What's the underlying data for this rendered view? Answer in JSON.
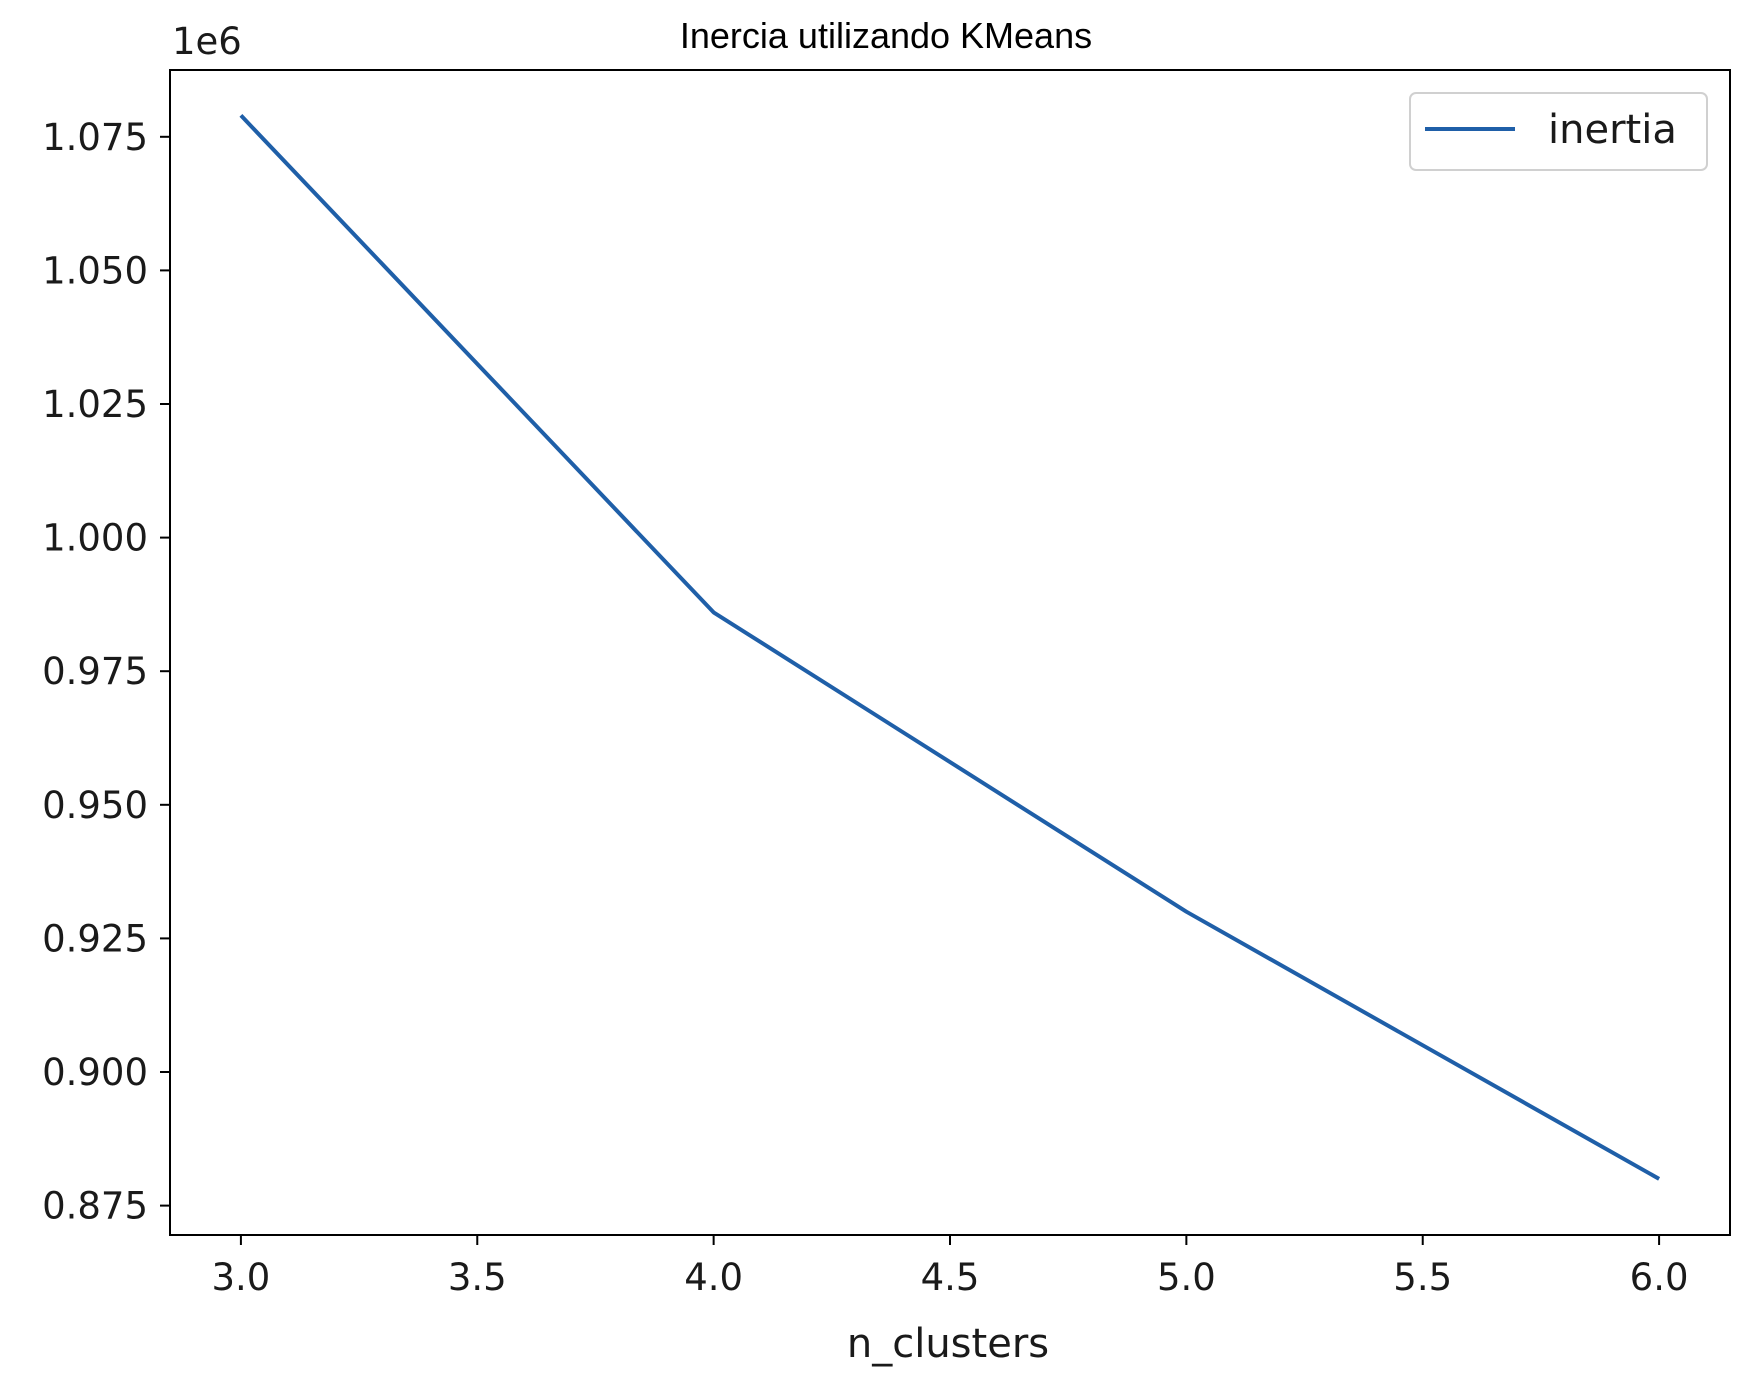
{
  "chart_data": {
    "type": "line",
    "title": "Inercia utilizando KMeans",
    "xlabel": "n_clusters",
    "ylabel": "",
    "y_offset_label": "1e6",
    "x": [
      3,
      4,
      5,
      6
    ],
    "series": [
      {
        "name": "inertia",
        "color": "#1f5fa8",
        "values": [
          1079000,
          986000,
          930000,
          880000
        ]
      }
    ],
    "xlim": [
      2.85,
      6.15
    ],
    "ylim": [
      0.8695,
      1.0875
    ],
    "y_scale_factor": 1000000,
    "x_ticks": [
      3.0,
      3.5,
      4.0,
      4.5,
      5.0,
      5.5,
      6.0
    ],
    "x_tick_labels": [
      "3.0",
      "3.5",
      "4.0",
      "4.5",
      "5.0",
      "5.5",
      "6.0"
    ],
    "y_ticks": [
      0.875,
      0.9,
      0.925,
      0.95,
      0.975,
      1.0,
      1.025,
      1.05,
      1.075
    ],
    "y_tick_labels": [
      "0.875",
      "0.900",
      "0.925",
      "0.950",
      "0.975",
      "1.000",
      "1.025",
      "1.050",
      "1.075"
    ],
    "grid": false,
    "legend_position": "top-right"
  }
}
